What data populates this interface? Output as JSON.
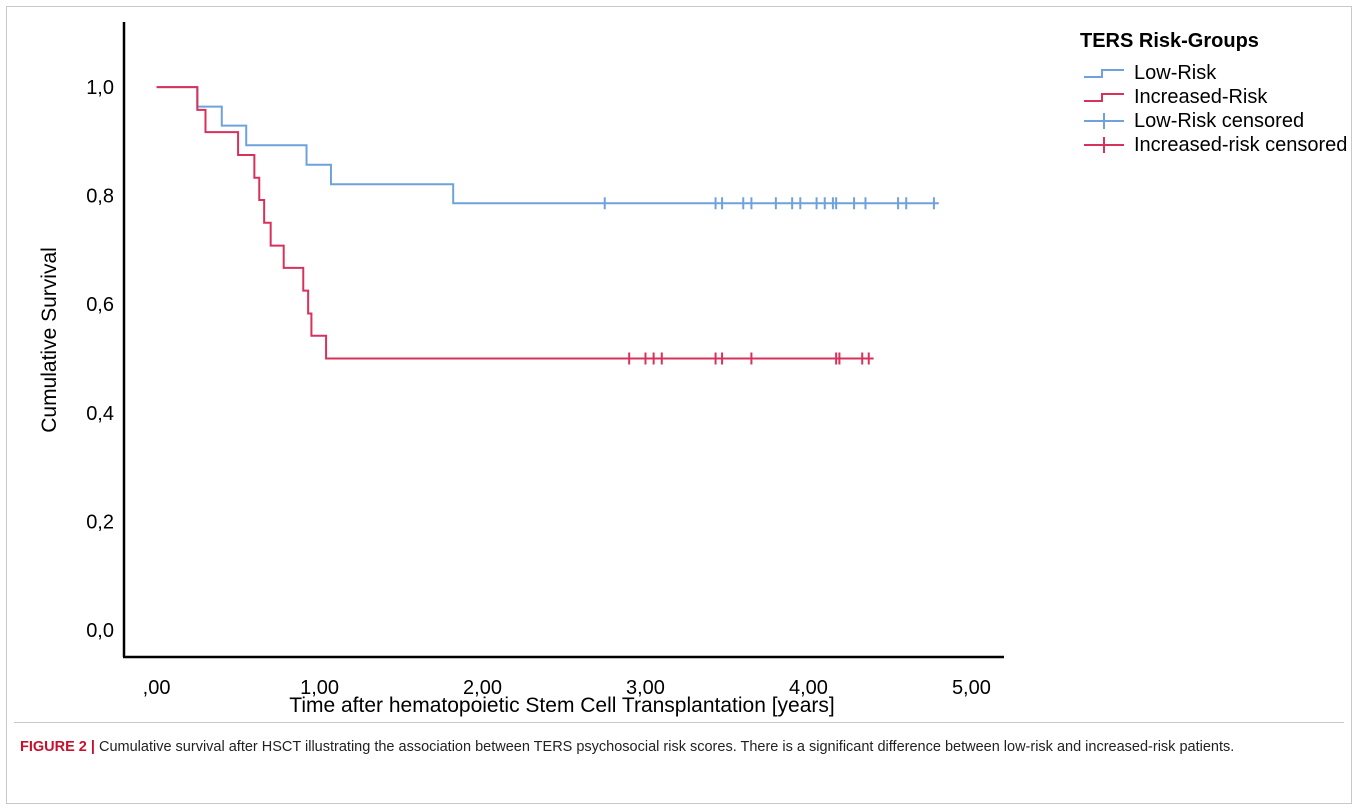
{
  "chart_data": {
    "type": "line",
    "subtype": "kaplan-meier step plot",
    "xlabel": "Time after hematopoietic Stem Cell Transplantation [years]",
    "ylabel": "Cumulative Survival",
    "xlim": [
      -0.2,
      5.2
    ],
    "ylim": [
      -0.05,
      1.12
    ],
    "x_ticks": [
      0,
      1,
      2,
      3,
      4,
      5
    ],
    "x_tick_labels": [
      ",00",
      "1,00",
      "2,00",
      "3,00",
      "4,00",
      "5,00"
    ],
    "y_ticks": [
      0,
      0.2,
      0.4,
      0.6,
      0.8,
      1.0
    ],
    "y_tick_labels": [
      "0,0",
      "0,2",
      "0,4",
      "0,6",
      "0,8",
      "1,0"
    ],
    "grid": false,
    "legend_title": "TERS Risk-Groups",
    "legend_position": "top-right (outside plot)",
    "series": [
      {
        "name": "Low-Risk",
        "color": "#6fa2dc",
        "steps": [
          [
            0,
            1.0
          ],
          [
            0.25,
            0.964
          ],
          [
            0.4,
            0.929
          ],
          [
            0.55,
            0.893
          ],
          [
            0.92,
            0.857
          ],
          [
            1.07,
            0.821
          ],
          [
            1.82,
            0.786
          ],
          [
            4.8,
            0.786
          ]
        ],
        "censored_name": "Low-Risk censored",
        "censored_x": [
          2.75,
          3.43,
          3.47,
          3.6,
          3.65,
          3.8,
          3.9,
          3.95,
          4.05,
          4.1,
          4.15,
          4.17,
          4.28,
          4.35,
          4.55,
          4.6,
          4.77
        ]
      },
      {
        "name": "Increased-Risk",
        "color": "#d8315b",
        "steps": [
          [
            0,
            1.0
          ],
          [
            0.25,
            0.958
          ],
          [
            0.3,
            0.917
          ],
          [
            0.5,
            0.875
          ],
          [
            0.6,
            0.833
          ],
          [
            0.63,
            0.792
          ],
          [
            0.66,
            0.75
          ],
          [
            0.7,
            0.708
          ],
          [
            0.78,
            0.667
          ],
          [
            0.9,
            0.625
          ],
          [
            0.93,
            0.583
          ],
          [
            0.95,
            0.542
          ],
          [
            1.04,
            0.5
          ],
          [
            4.4,
            0.5
          ]
        ],
        "censored_name": "Increased-risk censored",
        "censored_x": [
          2.9,
          3.0,
          3.05,
          3.1,
          3.43,
          3.47,
          3.65,
          4.17,
          4.19,
          4.33,
          4.37
        ]
      }
    ]
  },
  "legend": {
    "title": "TERS Risk-Groups",
    "items": [
      {
        "label": "Low-Risk",
        "kind": "step",
        "color": "#6fa2dc"
      },
      {
        "label": "Increased-Risk",
        "kind": "step",
        "color": "#d8315b"
      },
      {
        "label": "Low-Risk censored",
        "kind": "censor",
        "color": "#6fa2dc"
      },
      {
        "label": "Increased-risk censored",
        "kind": "censor",
        "color": "#d8315b"
      }
    ]
  },
  "caption": {
    "label": "FIGURE 2 |",
    "text": " Cumulative survival after HSCT illustrating the association between TERS psychosocial risk scores. There is a significant difference between low-risk and increased-risk patients."
  }
}
